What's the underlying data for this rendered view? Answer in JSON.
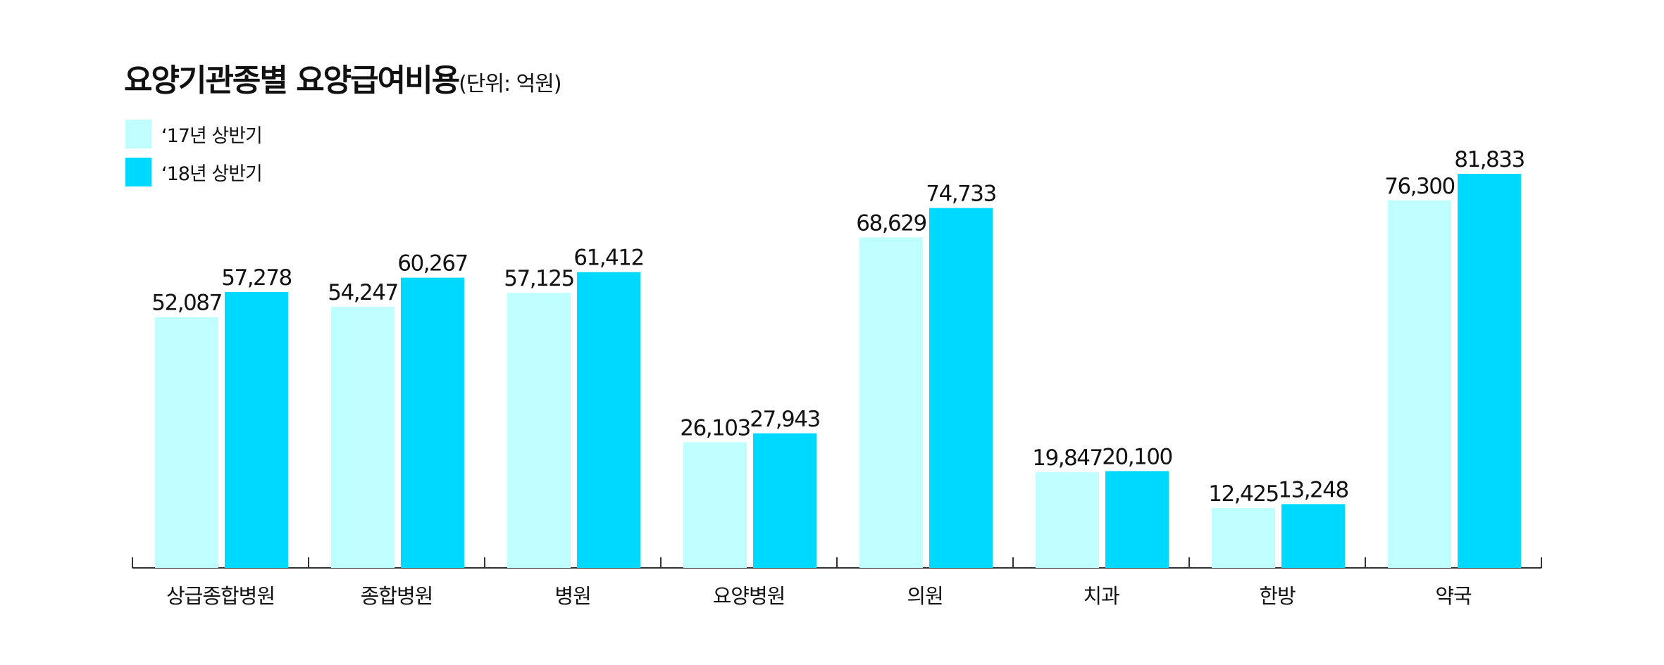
{
  "chart_data": {
    "type": "bar",
    "title": "요양기관종별 요양급여비용",
    "unit": "(단위: 억원)",
    "xlabel": "",
    "ylabel": "",
    "ylim": [
      0,
      81833
    ],
    "grid": false,
    "legend_position": "top-left",
    "categories": [
      "상급종합병원",
      "종합병원",
      "병원",
      "요양병원",
      "의원",
      "치과",
      "한방",
      "약국"
    ],
    "series": [
      {
        "name": "‘17년 상반기",
        "color": "#c0ffff",
        "values": [
          52087,
          54247,
          57125,
          26103,
          68629,
          19847,
          12425,
          76300
        ]
      },
      {
        "name": "‘18년 상반기",
        "color": "#00d9ff",
        "values": [
          57278,
          60267,
          61412,
          27943,
          74733,
          20100,
          13248,
          81833
        ]
      }
    ]
  }
}
